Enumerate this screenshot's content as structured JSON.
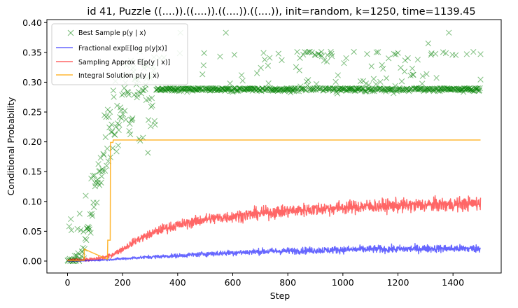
{
  "chart_data": {
    "type": "line",
    "title": "id 41, Puzzle ((....)).((....)).((....)).((....)), init=random, k=1250, time=1139.45",
    "xlabel": "Step",
    "ylabel": "Conditional Probability",
    "xlim": [
      -75,
      1575
    ],
    "ylim": [
      -0.02,
      0.405
    ],
    "xticks": [
      0,
      200,
      400,
      600,
      800,
      1000,
      1200,
      1400
    ],
    "yticks": [
      0.0,
      0.05,
      0.1,
      0.15,
      0.2,
      0.25,
      0.3,
      0.35,
      0.4
    ],
    "ytick_labels": [
      "0.00",
      "0.05",
      "0.10",
      "0.15",
      "0.20",
      "0.25",
      "0.30",
      "0.35",
      "0.40"
    ],
    "grid": false,
    "legend_position": "top-left",
    "series": [
      {
        "name": "Best Sample p(y | x)",
        "kind": "scatter",
        "marker": "x",
        "color": "#008000",
        "description_points": [
          [
            0,
            0.0
          ],
          [
            20,
            0.002
          ],
          [
            40,
            0.005
          ],
          [
            60,
            0.02
          ],
          [
            80,
            0.06
          ],
          [
            100,
            0.1
          ],
          [
            120,
            0.16
          ],
          [
            140,
            0.2
          ],
          [
            160,
            0.22
          ],
          [
            200,
            0.24
          ],
          [
            250,
            0.26
          ],
          [
            300,
            0.275
          ],
          [
            350,
            0.28
          ],
          [
            400,
            0.285
          ],
          [
            500,
            0.288
          ],
          [
            600,
            0.29
          ],
          [
            800,
            0.29
          ],
          [
            1000,
            0.29
          ],
          [
            1200,
            0.29
          ],
          [
            1500,
            0.29
          ]
        ],
        "outliers": [
          [
            410,
            0.383
          ],
          [
            575,
            0.383
          ],
          [
            1385,
            0.383
          ],
          [
            1310,
            0.365
          ],
          [
            1500,
            0.347
          ],
          [
            1450,
            0.347
          ]
        ]
      },
      {
        "name": "Fractional exp E[log p(y|x)]",
        "kind": "line",
        "color": "#0000ff",
        "x": [
          0,
          100,
          200,
          300,
          400,
          500,
          600,
          700,
          800,
          900,
          1000,
          1100,
          1200,
          1300,
          1400,
          1500
        ],
        "y": [
          0.0,
          0.001,
          0.004,
          0.007,
          0.009,
          0.012,
          0.014,
          0.016,
          0.017,
          0.018,
          0.019,
          0.02,
          0.02,
          0.021,
          0.021,
          0.021
        ]
      },
      {
        "name": "Sampling Approx E[p(y | x)]",
        "kind": "line",
        "color": "#ff0000",
        "x": [
          0,
          50,
          100,
          150,
          200,
          250,
          300,
          350,
          400,
          450,
          500,
          600,
          700,
          800,
          900,
          1000,
          1100,
          1200,
          1300,
          1400,
          1500
        ],
        "y": [
          0.0,
          0.002,
          0.003,
          0.008,
          0.02,
          0.035,
          0.045,
          0.055,
          0.06,
          0.065,
          0.07,
          0.075,
          0.08,
          0.084,
          0.087,
          0.09,
          0.092,
          0.093,
          0.094,
          0.095,
          0.097
        ]
      },
      {
        "name": "Integral Solution p(y | x)",
        "kind": "step",
        "color": "#ffa500",
        "x": [
          0,
          60,
          61,
          145,
          146,
          155,
          156,
          165,
          166,
          1500
        ],
        "y": [
          0.001,
          0.001,
          0.02,
          0.003,
          0.035,
          0.035,
          0.199,
          0.199,
          0.203,
          0.203
        ]
      }
    ]
  },
  "legend": {
    "items": [
      {
        "text": "Best Sample p(y | x)"
      },
      {
        "text": "Fractional exp𝔼[log p(y|x)]"
      },
      {
        "text": "Sampling Approx E[p(y | x)]"
      },
      {
        "text": "Integral Solution p(y | x)"
      }
    ]
  }
}
